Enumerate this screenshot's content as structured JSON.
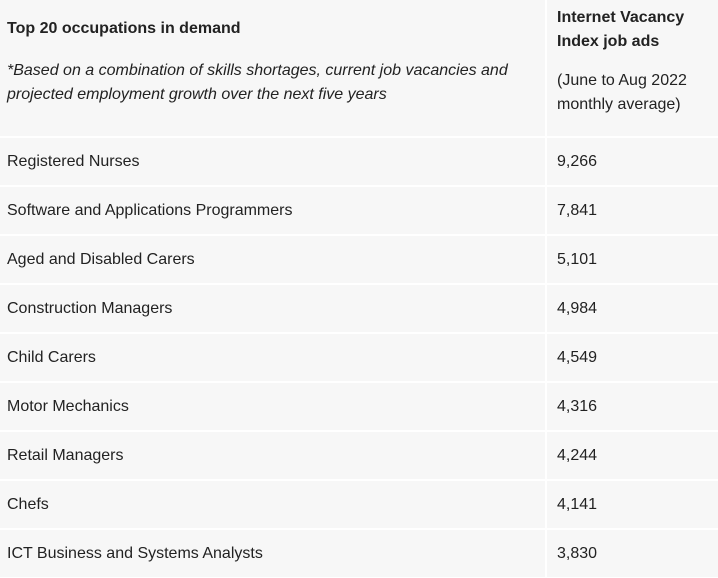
{
  "header": {
    "occupation_title": "Top 20 occupations in demand",
    "occupation_note": "*Based on a combination of skills shortages, current job vacancies and projected employment growth over the next five years",
    "ads_title": "Internet Vacancy Index job ads",
    "ads_period": "(June to Aug 2022 monthly average)"
  },
  "rows": [
    {
      "occupation": "Registered Nurses",
      "ads": "9,266"
    },
    {
      "occupation": "Software and Applications Programmers",
      "ads": "7,841"
    },
    {
      "occupation": "Aged and Disabled Carers",
      "ads": "5,101"
    },
    {
      "occupation": "Construction Managers",
      "ads": "4,984"
    },
    {
      "occupation": "Child Carers",
      "ads": "4,549"
    },
    {
      "occupation": "Motor Mechanics",
      "ads": "4,316"
    },
    {
      "occupation": "Retail Managers",
      "ads": "4,244"
    },
    {
      "occupation": "Chefs",
      "ads": "4,141"
    },
    {
      "occupation": "ICT Business and Systems Analysts",
      "ads": "3,830"
    }
  ]
}
